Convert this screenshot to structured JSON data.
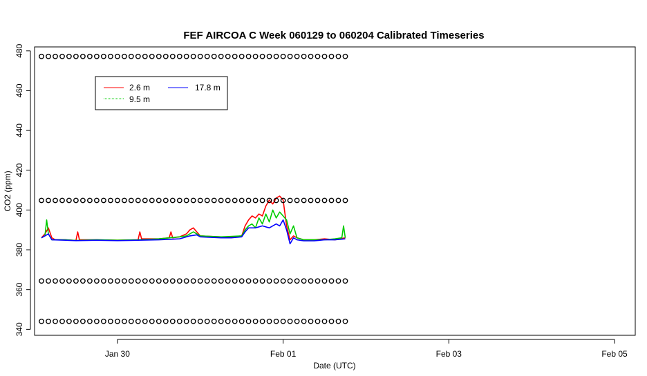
{
  "chart_data": {
    "type": "line",
    "title": "FEF AIRCOA C  Week 060129 to 060204  Calibrated Timeseries",
    "xlabel": "Date (UTC)",
    "ylabel": "CO2 (ppm)",
    "x_type": "date",
    "xlim": [
      "2006-01-29T00:00",
      "2006-02-05T06:00"
    ],
    "ylim": [
      337,
      482
    ],
    "x_ticks": [
      {
        "date": "2006-01-30T00:00",
        "label": "Jan 30"
      },
      {
        "date": "2006-02-01T00:00",
        "label": "Feb 01"
      },
      {
        "date": "2006-02-03T00:00",
        "label": "Feb 03"
      },
      {
        "date": "2006-02-05T00:00",
        "label": "Feb 05"
      }
    ],
    "y_ticks": [
      340,
      360,
      380,
      400,
      420,
      440,
      460,
      480
    ],
    "grid": false,
    "legend": {
      "position": "top-left",
      "entries": [
        {
          "label": "2.6 m",
          "color": "#ff0000",
          "style": "solid"
        },
        {
          "label": "9.5 m",
          "color": "#00cc00",
          "style": "dotted"
        },
        {
          "label": "17.8 m",
          "color": "#0000ff",
          "style": "solid"
        }
      ]
    },
    "series": [
      {
        "name": "2.6 m",
        "color": "#ff0000",
        "points": [
          [
            "2006-01-29T02:00",
            386
          ],
          [
            "2006-01-29T03:00",
            388
          ],
          [
            "2006-01-29T04:00",
            391
          ],
          [
            "2006-01-29T05:00",
            386
          ],
          [
            "2006-01-29T06:00",
            385
          ],
          [
            "2006-01-29T09:00",
            385
          ],
          [
            "2006-01-29T12:00",
            384.7
          ],
          [
            "2006-01-29T12:30",
            389
          ],
          [
            "2006-01-29T13:00",
            385
          ],
          [
            "2006-01-29T18:00",
            385
          ],
          [
            "2006-01-30T00:00",
            384.8
          ],
          [
            "2006-01-30T06:00",
            385
          ],
          [
            "2006-01-30T06:30",
            389
          ],
          [
            "2006-01-30T07:00",
            385.5
          ],
          [
            "2006-01-30T12:00",
            385.5
          ],
          [
            "2006-01-30T15:00",
            386
          ],
          [
            "2006-01-30T15:30",
            389
          ],
          [
            "2006-01-30T16:00",
            386
          ],
          [
            "2006-01-30T18:00",
            386.5
          ],
          [
            "2006-01-30T20:00",
            388
          ],
          [
            "2006-01-30T21:00",
            390
          ],
          [
            "2006-01-30T22:00",
            391
          ],
          [
            "2006-01-30T23:00",
            389
          ],
          [
            "2006-01-31T00:00",
            387
          ],
          [
            "2006-01-31T06:00",
            386.5
          ],
          [
            "2006-01-31T09:00",
            386.5
          ],
          [
            "2006-01-31T12:00",
            387
          ],
          [
            "2006-01-31T13:00",
            392
          ],
          [
            "2006-01-31T14:00",
            395
          ],
          [
            "2006-01-31T15:00",
            397
          ],
          [
            "2006-01-31T16:00",
            396
          ],
          [
            "2006-01-31T17:00",
            398
          ],
          [
            "2006-01-31T18:00",
            397
          ],
          [
            "2006-01-31T19:00",
            402
          ],
          [
            "2006-01-31T20:00",
            405
          ],
          [
            "2006-01-31T21:00",
            403
          ],
          [
            "2006-01-31T22:00",
            406
          ],
          [
            "2006-01-31T23:00",
            407
          ],
          [
            "2006-02-01T00:00",
            405
          ],
          [
            "2006-02-01T01:00",
            392
          ],
          [
            "2006-02-01T02:00",
            385
          ],
          [
            "2006-02-01T03:00",
            387
          ],
          [
            "2006-02-01T04:00",
            386
          ],
          [
            "2006-02-01T06:00",
            385
          ],
          [
            "2006-02-01T09:00",
            385
          ],
          [
            "2006-02-01T12:00",
            385.5
          ],
          [
            "2006-02-01T15:00",
            385
          ],
          [
            "2006-02-01T18:00",
            386
          ]
        ]
      },
      {
        "name": "9.5 m",
        "color": "#00cc00",
        "points": [
          [
            "2006-01-29T02:00",
            386
          ],
          [
            "2006-01-29T03:00",
            387
          ],
          [
            "2006-01-29T03:30",
            395
          ],
          [
            "2006-01-29T04:00",
            388
          ],
          [
            "2006-01-29T05:00",
            385
          ],
          [
            "2006-01-29T09:00",
            385
          ],
          [
            "2006-01-29T12:00",
            384.7
          ],
          [
            "2006-01-29T18:00",
            385
          ],
          [
            "2006-01-30T00:00",
            384.8
          ],
          [
            "2006-01-30T06:00",
            385
          ],
          [
            "2006-01-30T12:00",
            385.5
          ],
          [
            "2006-01-30T18:00",
            386.5
          ],
          [
            "2006-01-30T20:00",
            387
          ],
          [
            "2006-01-30T22:00",
            389
          ],
          [
            "2006-01-30T23:00",
            388
          ],
          [
            "2006-01-31T00:00",
            387
          ],
          [
            "2006-01-31T06:00",
            386.5
          ],
          [
            "2006-01-31T12:00",
            387
          ],
          [
            "2006-01-31T13:00",
            390
          ],
          [
            "2006-01-31T14:00",
            392
          ],
          [
            "2006-01-31T15:00",
            393
          ],
          [
            "2006-01-31T16:00",
            391
          ],
          [
            "2006-01-31T17:00",
            396
          ],
          [
            "2006-01-31T18:00",
            393
          ],
          [
            "2006-01-31T19:00",
            398
          ],
          [
            "2006-01-31T20:00",
            394
          ],
          [
            "2006-01-31T21:00",
            400
          ],
          [
            "2006-01-31T22:00",
            396
          ],
          [
            "2006-01-31T23:00",
            399
          ],
          [
            "2006-02-01T00:00",
            397
          ],
          [
            "2006-02-01T01:00",
            395
          ],
          [
            "2006-02-01T02:00",
            388
          ],
          [
            "2006-02-01T03:00",
            392
          ],
          [
            "2006-02-01T04:00",
            386
          ],
          [
            "2006-02-01T06:00",
            385
          ],
          [
            "2006-02-01T12:00",
            385
          ],
          [
            "2006-02-01T15:00",
            385.5
          ],
          [
            "2006-02-01T17:00",
            386
          ],
          [
            "2006-02-01T17:30",
            392
          ],
          [
            "2006-02-01T18:00",
            386
          ]
        ]
      },
      {
        "name": "17.8 m",
        "color": "#0000ff",
        "points": [
          [
            "2006-01-29T02:00",
            386
          ],
          [
            "2006-01-29T03:00",
            387
          ],
          [
            "2006-01-29T04:00",
            388
          ],
          [
            "2006-01-29T05:00",
            385
          ],
          [
            "2006-01-29T09:00",
            384.8
          ],
          [
            "2006-01-29T12:00",
            384.6
          ],
          [
            "2006-01-29T18:00",
            384.8
          ],
          [
            "2006-01-30T00:00",
            384.6
          ],
          [
            "2006-01-30T06:00",
            384.8
          ],
          [
            "2006-01-30T12:00",
            385
          ],
          [
            "2006-01-30T18:00",
            385.5
          ],
          [
            "2006-01-30T21:00",
            387
          ],
          [
            "2006-01-30T23:00",
            387.5
          ],
          [
            "2006-01-31T00:00",
            386.5
          ],
          [
            "2006-01-31T06:00",
            386
          ],
          [
            "2006-01-31T09:00",
            386
          ],
          [
            "2006-01-31T12:00",
            386.5
          ],
          [
            "2006-01-31T13:00",
            389
          ],
          [
            "2006-01-31T14:00",
            391
          ],
          [
            "2006-01-31T16:00",
            391
          ],
          [
            "2006-01-31T18:00",
            392
          ],
          [
            "2006-01-31T20:00",
            391
          ],
          [
            "2006-01-31T22:00",
            393
          ],
          [
            "2006-01-31T23:00",
            392
          ],
          [
            "2006-02-01T00:00",
            395
          ],
          [
            "2006-02-01T01:00",
            390
          ],
          [
            "2006-02-01T02:00",
            383
          ],
          [
            "2006-02-01T03:00",
            386
          ],
          [
            "2006-02-01T04:00",
            385
          ],
          [
            "2006-02-01T06:00",
            384.5
          ],
          [
            "2006-02-01T09:00",
            384.5
          ],
          [
            "2006-02-01T12:00",
            385
          ],
          [
            "2006-02-01T15:00",
            385
          ],
          [
            "2006-02-01T18:00",
            385.5
          ]
        ]
      },
      {
        "name": "",
        "marker": "open-circle",
        "color": "#000000",
        "y_levels": [
          344,
          364.3,
          404.8,
          477.2
        ],
        "x_start": "2006-01-29T02:00",
        "x_end": "2006-02-01T18:00",
        "marker_step_hours": 2
      }
    ]
  }
}
